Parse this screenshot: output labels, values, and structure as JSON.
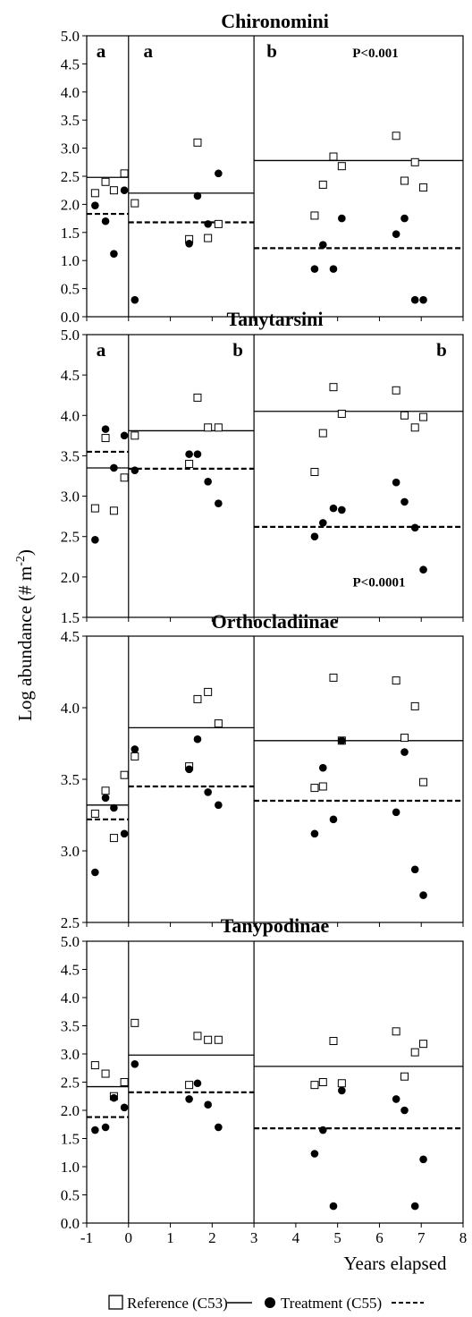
{
  "chart_data": [
    {
      "type": "scatter",
      "title": "Chironomini",
      "ylim": [
        0,
        5
      ],
      "yticks": [
        0,
        0.5,
        1,
        1.5,
        2,
        2.5,
        3,
        3.5,
        4,
        4.5,
        5
      ],
      "ytick_labels": [
        "0.0",
        "0.5",
        "1.0",
        "1.5",
        "2.0",
        "2.5",
        "3.0",
        "3.5",
        "4.0",
        "4.5",
        "5.0"
      ],
      "period_letters": [
        "a",
        "a",
        "b"
      ],
      "p_value": "P<0.001",
      "series": [
        {
          "marker": "open-square",
          "x": [
            -0.8,
            -0.55,
            -0.35,
            -0.1,
            0.15,
            1.45,
            1.65,
            1.9,
            2.15,
            4.45,
            4.65,
            4.9,
            5.1,
            6.4,
            6.6,
            6.85,
            7.05
          ],
          "y": [
            2.2,
            2.4,
            2.25,
            2.55,
            2.02,
            1.38,
            3.1,
            1.4,
            1.65,
            1.8,
            2.35,
            2.85,
            2.68,
            3.22,
            2.42,
            2.75,
            2.3
          ]
        },
        {
          "marker": "filled-circle",
          "x": [
            -0.8,
            -0.55,
            -0.35,
            -0.1,
            0.15,
            1.45,
            1.65,
            1.9,
            2.15,
            4.45,
            4.65,
            4.9,
            5.1,
            6.4,
            6.6,
            6.85,
            7.05
          ],
          "y": [
            1.98,
            1.7,
            1.12,
            2.25,
            0.3,
            1.3,
            2.15,
            1.65,
            2.55,
            0.85,
            1.28,
            0.85,
            1.75,
            1.47,
            1.75,
            0.3,
            0.3
          ]
        }
      ],
      "means": [
        {
          "style": "solid",
          "segments": [
            {
              "x0": -1,
              "x1": 0,
              "y": 2.48
            },
            {
              "x0": 0,
              "x1": 3,
              "y": 2.2
            },
            {
              "x0": 3,
              "x1": 8,
              "y": 2.78
            }
          ]
        },
        {
          "style": "dashed",
          "segments": [
            {
              "x0": -1,
              "x1": 0,
              "y": 1.83
            },
            {
              "x0": 0,
              "x1": 3,
              "y": 1.68
            },
            {
              "x0": 3,
              "x1": 8,
              "y": 1.22
            }
          ]
        }
      ]
    },
    {
      "type": "scatter",
      "title": "Tanytarsini",
      "ylim": [
        1.5,
        5
      ],
      "yticks": [
        1.5,
        2,
        2.5,
        3,
        3.5,
        4,
        4.5,
        5
      ],
      "ytick_labels": [
        "1.5",
        "2.0",
        "2.5",
        "3.0",
        "3.5",
        "4.0",
        "4.5",
        "5.0"
      ],
      "period_letters": [
        "a",
        "b",
        "b"
      ],
      "p_value": "P<0.0001",
      "series": [
        {
          "marker": "open-square",
          "x": [
            -0.8,
            -0.55,
            -0.35,
            -0.1,
            0.15,
            1.45,
            1.65,
            1.9,
            2.15,
            4.45,
            4.65,
            4.9,
            5.1,
            6.4,
            6.6,
            6.85,
            7.05
          ],
          "y": [
            2.85,
            3.72,
            2.82,
            3.23,
            3.75,
            3.4,
            4.22,
            3.85,
            3.85,
            3.3,
            3.78,
            4.35,
            4.02,
            4.31,
            4.0,
            3.85,
            3.98
          ]
        },
        {
          "marker": "filled-circle",
          "x": [
            -0.8,
            -0.55,
            -0.35,
            -0.1,
            0.15,
            1.45,
            1.65,
            1.9,
            2.15,
            4.45,
            4.65,
            4.9,
            5.1,
            6.4,
            6.6,
            6.85,
            7.05
          ],
          "y": [
            2.46,
            3.83,
            3.35,
            3.75,
            3.32,
            3.52,
            3.52,
            3.18,
            2.91,
            2.5,
            2.67,
            2.85,
            2.83,
            3.17,
            2.93,
            2.61,
            2.09
          ]
        }
      ],
      "means": [
        {
          "style": "solid",
          "segments": [
            {
              "x0": -1,
              "x1": 0,
              "y": 3.35
            },
            {
              "x0": 0,
              "x1": 3,
              "y": 3.81
            },
            {
              "x0": 3,
              "x1": 8,
              "y": 4.05
            }
          ]
        },
        {
          "style": "dashed",
          "segments": [
            {
              "x0": -1,
              "x1": 0,
              "y": 3.55
            },
            {
              "x0": 0,
              "x1": 3,
              "y": 3.34
            },
            {
              "x0": 3,
              "x1": 8,
              "y": 2.62
            }
          ]
        }
      ]
    },
    {
      "type": "scatter",
      "title": "Orthocladiinae",
      "ylim": [
        2.5,
        4.5
      ],
      "yticks": [
        2.5,
        3,
        3.5,
        4,
        4.5
      ],
      "ytick_labels": [
        "2.5",
        "3.0",
        "3.5",
        "4.0",
        "4.5"
      ],
      "series": [
        {
          "marker": "open-square",
          "x": [
            -0.8,
            -0.55,
            -0.35,
            -0.1,
            0.15,
            1.45,
            1.65,
            1.9,
            2.15,
            4.45,
            4.65,
            4.9,
            5.1,
            6.4,
            6.6,
            6.85,
            7.05
          ],
          "y": [
            3.26,
            3.42,
            3.09,
            3.53,
            3.66,
            3.59,
            4.06,
            4.11,
            3.89,
            3.44,
            3.45,
            4.21,
            3.77,
            4.19,
            3.79,
            4.01,
            3.48
          ]
        },
        {
          "marker": "filled-circle",
          "x": [
            -0.8,
            -0.55,
            -0.35,
            -0.1,
            0.15,
            1.45,
            1.65,
            1.9,
            2.15,
            4.45,
            4.65,
            4.9,
            5.1,
            6.4,
            6.6,
            6.85,
            7.05
          ],
          "y": [
            2.85,
            3.37,
            3.3,
            3.12,
            3.71,
            3.57,
            3.78,
            3.41,
            3.32,
            3.12,
            3.58,
            3.22,
            3.77,
            3.27,
            3.69,
            2.87,
            2.69
          ]
        }
      ],
      "means": [
        {
          "style": "solid",
          "segments": [
            {
              "x0": -1,
              "x1": 0,
              "y": 3.32
            },
            {
              "x0": 0,
              "x1": 3,
              "y": 3.86
            },
            {
              "x0": 3,
              "x1": 8,
              "y": 3.77
            }
          ]
        },
        {
          "style": "dashed",
          "segments": [
            {
              "x0": -1,
              "x1": 0,
              "y": 3.22
            },
            {
              "x0": 0,
              "x1": 3,
              "y": 3.45
            },
            {
              "x0": 3,
              "x1": 8,
              "y": 3.35
            }
          ]
        }
      ]
    },
    {
      "type": "scatter",
      "title": "Tanypodinae",
      "ylim": [
        0,
        5
      ],
      "yticks": [
        0,
        0.5,
        1,
        1.5,
        2,
        2.5,
        3,
        3.5,
        4,
        4.5,
        5
      ],
      "ytick_labels": [
        "0.0",
        "0.5",
        "1.0",
        "1.5",
        "2.0",
        "2.5",
        "3.0",
        "3.5",
        "4.0",
        "4.5",
        "5.0"
      ],
      "xticks": [
        -1,
        0,
        1,
        2,
        3,
        4,
        5,
        6,
        7,
        8
      ],
      "xtick_labels": [
        "-1",
        "0",
        "1",
        "2",
        "3",
        "4",
        "5",
        "6",
        "7",
        "8"
      ],
      "series": [
        {
          "marker": "open-square",
          "x": [
            -0.8,
            -0.55,
            -0.35,
            -0.1,
            0.15,
            1.45,
            1.65,
            1.9,
            2.15,
            4.45,
            4.65,
            4.9,
            5.1,
            6.4,
            6.6,
            6.85,
            7.05
          ],
          "y": [
            2.8,
            2.65,
            2.25,
            2.5,
            3.55,
            2.45,
            3.32,
            3.25,
            3.25,
            2.45,
            2.5,
            3.23,
            2.48,
            3.4,
            2.6,
            3.03,
            3.18
          ]
        },
        {
          "marker": "filled-circle",
          "x": [
            -0.8,
            -0.55,
            -0.35,
            -0.1,
            0.15,
            1.45,
            1.65,
            1.9,
            2.15,
            4.45,
            4.65,
            4.9,
            5.1,
            6.4,
            6.6,
            6.85,
            7.05
          ],
          "y": [
            1.65,
            1.7,
            2.22,
            2.05,
            2.82,
            2.2,
            2.48,
            2.1,
            1.7,
            1.23,
            1.65,
            0.3,
            2.35,
            2.2,
            2.0,
            0.3,
            1.13
          ]
        }
      ],
      "means": [
        {
          "style": "solid",
          "segments": [
            {
              "x0": -1,
              "x1": 0,
              "y": 2.42
            },
            {
              "x0": 0,
              "x1": 3,
              "y": 2.98
            },
            {
              "x0": 3,
              "x1": 8,
              "y": 2.78
            }
          ]
        },
        {
          "style": "dashed",
          "segments": [
            {
              "x0": -1,
              "x1": 0,
              "y": 1.88
            },
            {
              "x0": 0,
              "x1": 3,
              "y": 2.32
            },
            {
              "x0": 3,
              "x1": 8,
              "y": 1.68
            }
          ]
        }
      ]
    }
  ],
  "xlim": [
    -1,
    8
  ],
  "xlabel": "Years elapsed",
  "ylabel": "Log abundance (# m",
  "ylabel_sup": "-2",
  "ylabel_close": ")",
  "period_breaks": [
    0,
    3
  ],
  "legend": {
    "reference": "Reference (C53)",
    "treatment": "Treatment (C55)"
  }
}
